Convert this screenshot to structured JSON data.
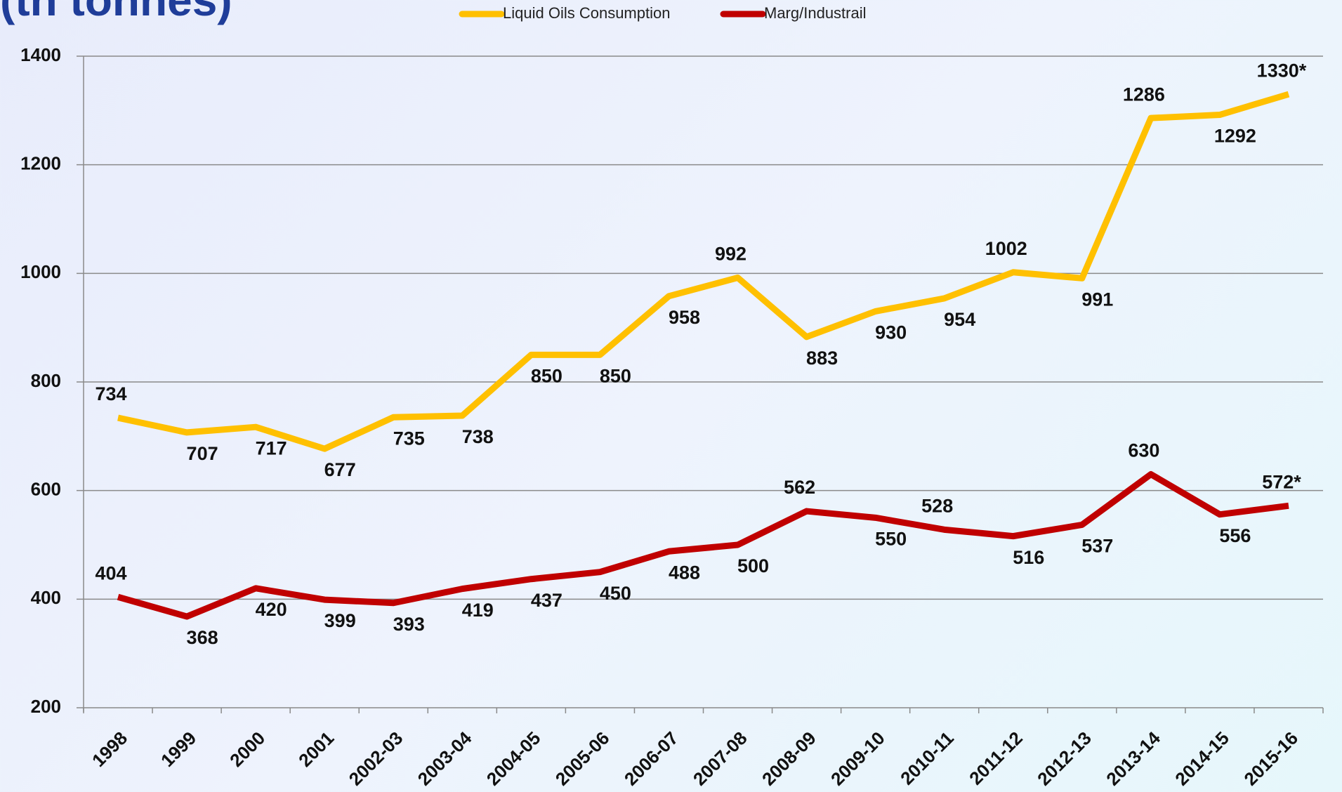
{
  "chart_data": {
    "type": "line",
    "title": "(tn tonnes)",
    "categories": [
      "1998",
      "1999",
      "2000",
      "2001",
      "2002-03",
      "2003-04",
      "2004-05",
      "2005-06",
      "2006-07",
      "2007-08",
      "2008-09",
      "2009-10",
      "2010-11",
      "2011-12",
      "2012-13",
      "2013-14",
      "2014-15",
      "2015-16"
    ],
    "series": [
      {
        "name": "Liquid Oils Consumption",
        "color": "#ffc000",
        "values": [
          734,
          707,
          717,
          677,
          735,
          738,
          850,
          850,
          958,
          992,
          883,
          930,
          954,
          1002,
          991,
          1286,
          1292,
          1330
        ],
        "value_labels": [
          "734",
          "707",
          "717",
          "677",
          "735",
          "738",
          "850",
          "850",
          "958",
          "992",
          "883",
          "930",
          "954",
          "1002",
          "991",
          "1286",
          "1292",
          "1330*"
        ]
      },
      {
        "name": "Marg/Industrail",
        "color": "#c00000",
        "values": [
          404,
          368,
          420,
          399,
          393,
          419,
          437,
          450,
          488,
          500,
          562,
          550,
          528,
          516,
          537,
          630,
          556,
          572
        ],
        "value_labels": [
          "404",
          "368",
          "420",
          "399",
          "393",
          "419",
          "437",
          "450",
          "488",
          "500",
          "562",
          "550",
          "528",
          "516",
          "537",
          "630",
          "556",
          "572*"
        ]
      }
    ],
    "ylim": [
      200,
      1400
    ],
    "yticks": [
      200,
      400,
      600,
      800,
      1000,
      1200,
      1400
    ],
    "grid": true
  }
}
